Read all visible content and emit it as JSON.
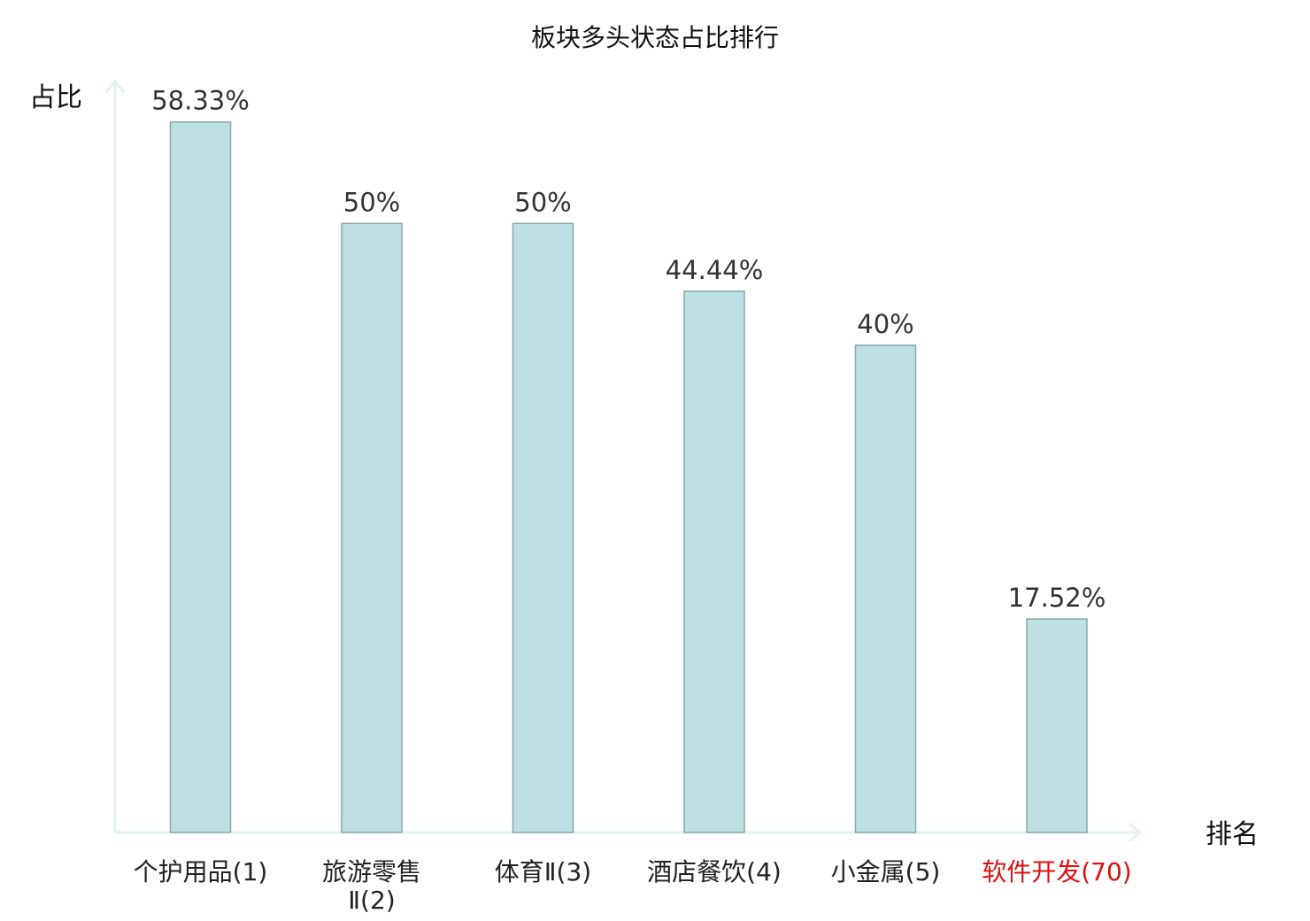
{
  "chart_data": {
    "type": "bar",
    "title": "板块多头状态占比排行",
    "ylabel": "占比",
    "xlabel": "排名",
    "ylim": [
      0,
      61.8
    ],
    "grid": false,
    "categories": [
      {
        "name": "个护用品",
        "rank": "(1)",
        "lines": [
          "个护用品(1)"
        ],
        "highlight": false
      },
      {
        "name": "旅游零售Ⅱ",
        "rank": "(2)",
        "lines": [
          "旅游零售",
          "Ⅱ(2)"
        ],
        "highlight": false
      },
      {
        "name": "体育Ⅱ",
        "rank": "(3)",
        "lines": [
          "体育Ⅱ(3)"
        ],
        "highlight": false
      },
      {
        "name": "酒店餐饮",
        "rank": "(4)",
        "lines": [
          "酒店餐饮(4)"
        ],
        "highlight": false
      },
      {
        "name": "小金属",
        "rank": "(5)",
        "lines": [
          "小金属(5)"
        ],
        "highlight": false
      },
      {
        "name": "软件开发",
        "rank": "(70)",
        "lines": [
          "软件开发(70)"
        ],
        "highlight": true
      }
    ],
    "values": [
      58.33,
      50,
      50,
      44.44,
      40,
      17.52
    ],
    "value_labels": [
      "58.33%",
      "50%",
      "50%",
      "44.44%",
      "40%",
      "17.52%"
    ],
    "colors": {
      "bar_fill": "#bde0e3",
      "bar_stroke": "#8aa8ab",
      "axis": "#e0f3f1",
      "category_text": "#222222",
      "highlight_text": "#e01010",
      "value_text": "#333333"
    }
  }
}
